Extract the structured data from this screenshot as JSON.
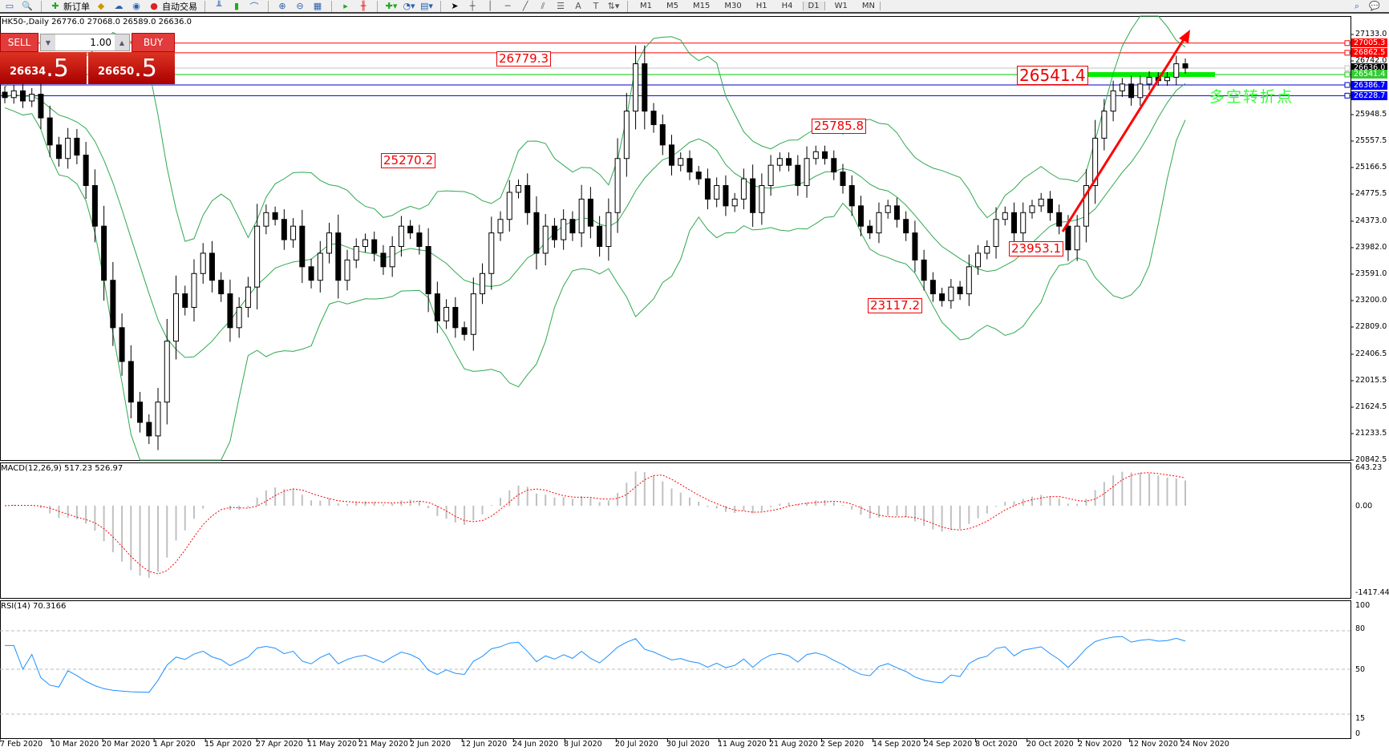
{
  "toolbar": {
    "new_order": "新订单",
    "auto_trading": "自动交易",
    "timeframes": [
      "M1",
      "M5",
      "M15",
      "M30",
      "H1",
      "H4",
      "D1",
      "W1",
      "MN"
    ],
    "active_timeframe": "D1"
  },
  "chart": {
    "header": "HK50-,Daily  26776.0 27068.0 26589.0 26636.0",
    "symbol": "HK50-",
    "period": "Daily"
  },
  "trade_panel": {
    "sell": "SELL",
    "buy": "BUY",
    "lot": "1.00",
    "bid_main": "26634",
    "bid_big": ".5",
    "ask_main": "26650",
    "ask_big": ".5"
  },
  "annotations": {
    "a1": "26779.3",
    "a2": "25270.2",
    "a3": "25785.8",
    "a4": "23953.1",
    "a5": "23117.2",
    "pivot": "26541.4",
    "pivot_text": "多空转折点"
  },
  "price_axis": {
    "ticks": [
      "27133.0",
      "26742.0",
      "25948.5",
      "25557.5",
      "25166.5",
      "24775.5",
      "24373.0",
      "23982.0",
      "23591.0",
      "23200.0",
      "22809.0",
      "22406.5",
      "22015.5",
      "21624.5",
      "21233.5",
      "20842.5"
    ],
    "tags": [
      {
        "value": "27005.3",
        "color": "#ff0000"
      },
      {
        "value": "26862.5",
        "color": "#ff0000"
      },
      {
        "value": "26636.0",
        "color": "#000000"
      },
      {
        "value": "26541.4",
        "color": "#33cc33"
      },
      {
        "value": "26386.7",
        "color": "#0000ff"
      },
      {
        "value": "26228.7",
        "color": "#0000ff"
      }
    ]
  },
  "macd": {
    "label": "MACD(12,26,9) 517.23 526.97",
    "ticks": [
      "643.23",
      "0.00",
      "-1417.44"
    ]
  },
  "rsi": {
    "label": "RSI(14) 70.3166",
    "ticks": [
      "100",
      "80",
      "50",
      "15",
      "0"
    ]
  },
  "dates": [
    "7 Feb 2020",
    "10 Mar 2020",
    "20 Mar 2020",
    "1 Apr 2020",
    "15 Apr 2020",
    "27 Apr 2020",
    "11 May 2020",
    "21 May 2020",
    "2 Jun 2020",
    "12 Jun 2020",
    "24 Jun 2020",
    "8 Jul 2020",
    "20 Jul 2020",
    "30 Jul 2020",
    "11 Aug 2020",
    "21 Aug 2020",
    "2 Sep 2020",
    "14 Sep 2020",
    "24 Sep 2020",
    "8 Oct 2020",
    "20 Oct 2020",
    "2 Nov 2020",
    "12 Nov 2020",
    "24 Nov 2020"
  ],
  "chart_data": {
    "type": "candlestick",
    "ylim": [
      20842.5,
      27133.0
    ],
    "closes": [
      26200,
      26300,
      26150,
      26250,
      25900,
      25500,
      25300,
      25600,
      25350,
      24900,
      24300,
      23500,
      22800,
      22300,
      21700,
      21400,
      21200,
      21700,
      22600,
      23300,
      23100,
      23600,
      23900,
      23500,
      23300,
      22800,
      23100,
      23400,
      24300,
      24500,
      24400,
      24100,
      24300,
      23700,
      23500,
      23900,
      24200,
      23500,
      23800,
      24000,
      24100,
      23900,
      23700,
      24000,
      24300,
      24200,
      24000,
      23300,
      22900,
      23100,
      22800,
      22700,
      23300,
      23600,
      24200,
      24400,
      24800,
      24900,
      24500,
      23900,
      24300,
      24100,
      24400,
      24200,
      24700,
      24300,
      24000,
      24500,
      25300,
      26000,
      26700,
      26000,
      25800,
      25500,
      25200,
      25300,
      25100,
      25000,
      24700,
      24900,
      24600,
      24700,
      25000,
      24500,
      24900,
      25200,
      25300,
      25200,
      24900,
      25300,
      25400,
      25300,
      25100,
      24900,
      24600,
      24300,
      24200,
      24500,
      24600,
      24400,
      24200,
      23800,
      23500,
      23300,
      23200,
      23400,
      23300,
      23700,
      23900,
      24000,
      24400,
      24500,
      24200,
      24500,
      24600,
      24700,
      24500,
      24300,
      23950,
      24300,
      24900,
      25600,
      26000,
      26300,
      26400,
      26200,
      26400,
      26500,
      26450,
      26500,
      26700,
      26636
    ],
    "hlines": [
      {
        "price": 27005.3,
        "color": "#ff0000"
      },
      {
        "price": 26862.5,
        "color": "#ff0000"
      },
      {
        "price": 26636.0,
        "color": "#c0c0c0"
      },
      {
        "price": 26541.4,
        "color": "#00cc00"
      },
      {
        "price": 26386.7,
        "color": "#0000cc"
      },
      {
        "price": 26228.7,
        "color": "#0000cc"
      }
    ],
    "colors": {
      "bands": "#2fa84f",
      "macd_signal": "#ff0000",
      "macd_hist": "#c0c0c0",
      "rsi": "#1e90ff",
      "arrow": "#ff0000"
    }
  }
}
